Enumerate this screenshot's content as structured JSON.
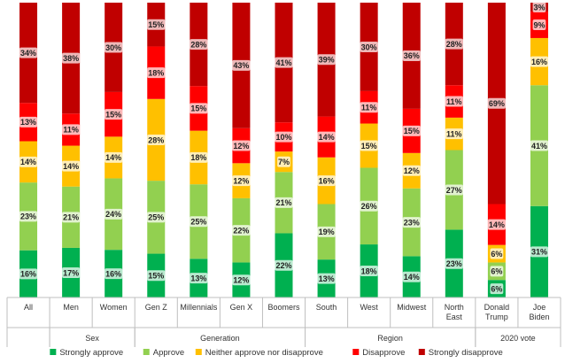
{
  "chart_data": {
    "type": "bar",
    "stacked": true,
    "stacked_percent": true,
    "categories": [
      "All",
      "Men",
      "Women",
      "Gen Z",
      "Millennials",
      "Gen X",
      "Boomers",
      "South",
      "West",
      "Midwest",
      "North East",
      "Donald Trump",
      "Joe Biden"
    ],
    "category_lines": [
      [
        "All"
      ],
      [
        "Men"
      ],
      [
        "Women"
      ],
      [
        "Gen Z"
      ],
      [
        "Millennials"
      ],
      [
        "Gen X"
      ],
      [
        "Boomers"
      ],
      [
        "South"
      ],
      [
        "West"
      ],
      [
        "Midwest"
      ],
      [
        "North",
        "East"
      ],
      [
        "Donald",
        "Trump"
      ],
      [
        "Joe",
        "Biden"
      ]
    ],
    "groups": [
      {
        "label": "",
        "start": 0,
        "end": 0
      },
      {
        "label": "Sex",
        "start": 1,
        "end": 2
      },
      {
        "label": "Generation",
        "start": 3,
        "end": 6
      },
      {
        "label": "Region",
        "start": 7,
        "end": 10
      },
      {
        "label": "2020 vote",
        "start": 11,
        "end": 12
      }
    ],
    "series": [
      {
        "name": "Strongly approve",
        "color": "#00b050",
        "values": [
          16,
          17,
          16,
          15,
          13,
          12,
          22,
          13,
          18,
          14,
          23,
          6,
          31
        ]
      },
      {
        "name": "Approve",
        "color": "#92d050",
        "values": [
          23,
          21,
          24,
          25,
          25,
          22,
          21,
          19,
          26,
          23,
          27,
          6,
          41
        ]
      },
      {
        "name": "Neither approve nor disapprove",
        "color": "#ffc000",
        "values": [
          14,
          14,
          14,
          28,
          18,
          12,
          7,
          16,
          15,
          12,
          11,
          6,
          16
        ]
      },
      {
        "name": "Disapprove",
        "color": "#ff0000",
        "values": [
          13,
          11,
          15,
          18,
          15,
          12,
          10,
          14,
          11,
          15,
          11,
          14,
          9
        ]
      },
      {
        "name": "Strongly disapprove",
        "color": "#c00000",
        "values": [
          34,
          38,
          30,
          15,
          28,
          43,
          41,
          39,
          30,
          36,
          28,
          69,
          3
        ]
      }
    ],
    "value_suffix": "%",
    "ylim": [
      0,
      100
    ],
    "grid": false,
    "legend_position": "bottom",
    "title": "",
    "xlabel": "",
    "ylabel": ""
  }
}
